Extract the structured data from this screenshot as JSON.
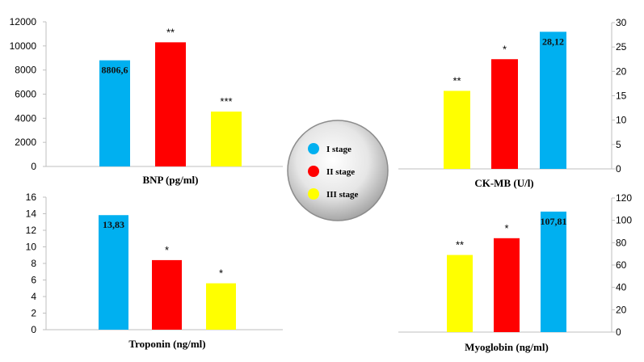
{
  "legend": {
    "items": [
      {
        "label": "I stage",
        "color": "#00b0f0"
      },
      {
        "label": "II stage",
        "color": "#ff0000"
      },
      {
        "label": "III stage",
        "color": "#ffff00"
      }
    ]
  },
  "chart_data": [
    {
      "type": "bar",
      "xlabel": "BNP (pg/ml)",
      "ylim": [
        0,
        12000
      ],
      "yticks": [
        "0",
        "2000",
        "4000",
        "6000",
        "8000",
        "10000",
        "12000"
      ],
      "axis_side": "left",
      "categories": [
        "I stage",
        "II stage",
        "III stage"
      ],
      "values": [
        8806.6,
        10300,
        4550
      ],
      "colors": [
        "#00b0f0",
        "#ff0000",
        "#ffff00"
      ],
      "data_labels": [
        "8806,6",
        "**",
        "***"
      ]
    },
    {
      "type": "bar",
      "xlabel": "CK-MB (U/l)",
      "ylim": [
        0,
        30
      ],
      "yticks": [
        "0",
        "5",
        "10",
        "15",
        "20",
        "25",
        "30"
      ],
      "axis_side": "right",
      "categories": [
        "III stage",
        "II stage",
        "I stage"
      ],
      "values": [
        16,
        22.5,
        28.12
      ],
      "colors": [
        "#ffff00",
        "#ff0000",
        "#00b0f0"
      ],
      "data_labels": [
        "**",
        "*",
        "28,12"
      ]
    },
    {
      "type": "bar",
      "xlabel": "Troponin (ng/ml)",
      "ylim": [
        0,
        16
      ],
      "yticks": [
        "0",
        "2",
        "4",
        "6",
        "8",
        "10",
        "12",
        "14",
        "16"
      ],
      "axis_side": "left",
      "categories": [
        "I stage",
        "II stage",
        "III stage"
      ],
      "values": [
        13.83,
        8.4,
        5.6
      ],
      "colors": [
        "#00b0f0",
        "#ff0000",
        "#ffff00"
      ],
      "data_labels": [
        "13,83",
        "*",
        "*"
      ]
    },
    {
      "type": "bar",
      "xlabel": "Myoglobin (ng/ml)",
      "ylim": [
        0,
        120
      ],
      "yticks": [
        "0",
        "20",
        "40",
        "60",
        "80",
        "100",
        "120"
      ],
      "axis_side": "right",
      "categories": [
        "III stage",
        "II stage",
        "I stage"
      ],
      "values": [
        69,
        84,
        107.81
      ],
      "colors": [
        "#ffff00",
        "#ff0000",
        "#00b0f0"
      ],
      "data_labels": [
        "**",
        "*",
        "107,81"
      ]
    }
  ]
}
